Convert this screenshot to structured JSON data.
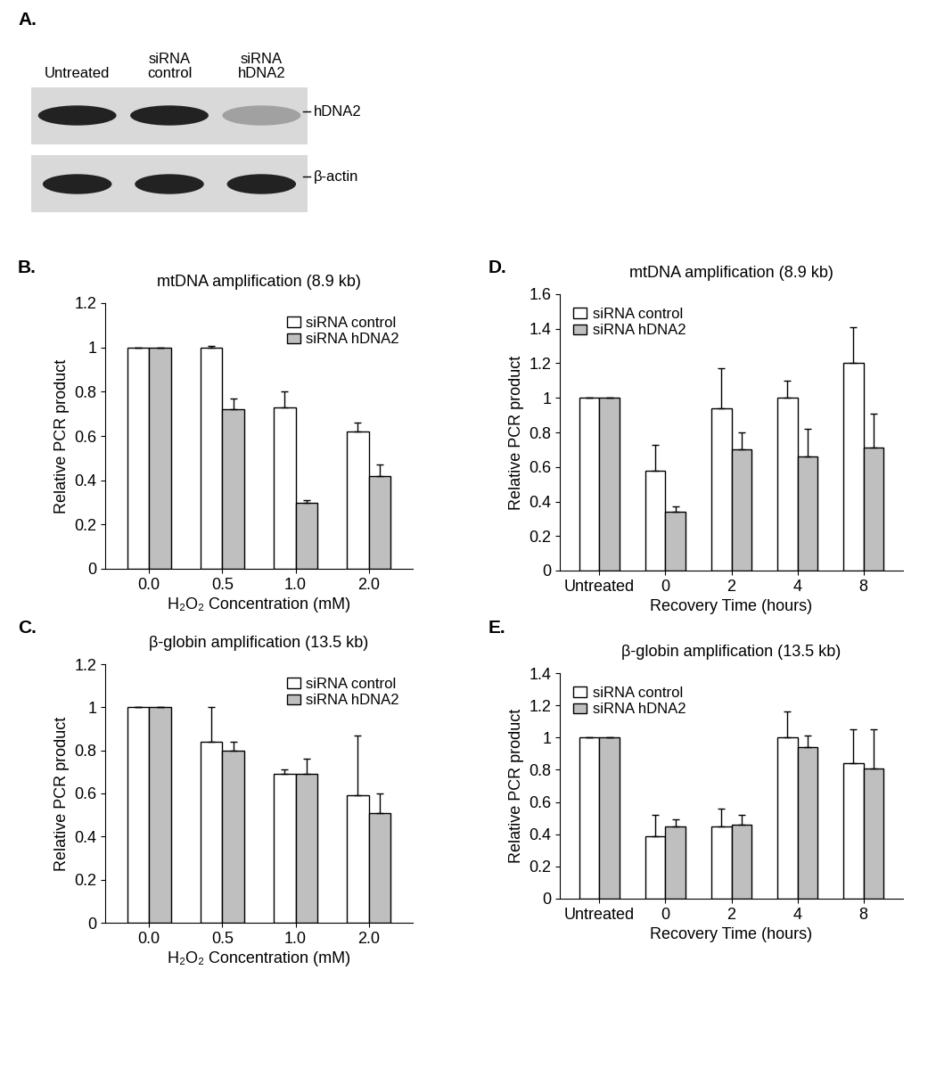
{
  "blot": {
    "panel": "A.",
    "lanes": [
      "Untreated",
      "siRNA\ncontrol",
      "siRNA\nhDNA2"
    ],
    "bands": [
      "hDNA2",
      "β-actin"
    ]
  },
  "chart_data": [
    {
      "panel": "B.",
      "type": "bar",
      "title": "mtDNA amplification (8.9 kb)",
      "x_label": "H₂O₂ Concentration (mM)",
      "y_label": "Relative PCR product",
      "categories": [
        "0.0",
        "0.5",
        "1.0",
        "2.0"
      ],
      "series": [
        {
          "name": "siRNA control",
          "color": "#ffffff",
          "values": [
            1,
            1.0,
            0.73,
            0.62
          ],
          "errors": [
            0,
            0.005,
            0.07,
            0.04
          ]
        },
        {
          "name": "siRNA hDNA2",
          "color": "#bfbfbf",
          "values": [
            1,
            0.72,
            0.3,
            0.42
          ],
          "errors": [
            0,
            0.05,
            0.01,
            0.05
          ]
        }
      ],
      "ylim": [
        0,
        1.2
      ],
      "yticks": [
        0,
        0.2,
        0.4,
        0.6,
        0.8,
        1,
        1.2
      ],
      "legend": "upper right",
      "grid": false
    },
    {
      "panel": "C.",
      "type": "bar",
      "title": "β-globin amplification (13.5 kb)",
      "x_label": "H₂O₂ Concentration (mM)",
      "y_label": "Relative PCR product",
      "categories": [
        "0.0",
        "0.5",
        "1.0",
        "2.0"
      ],
      "series": [
        {
          "name": "siRNA control",
          "color": "#ffffff",
          "values": [
            1,
            0.84,
            0.69,
            0.59
          ],
          "errors": [
            0,
            0.16,
            0.02,
            0.28
          ]
        },
        {
          "name": "siRNA hDNA2",
          "color": "#bfbfbf",
          "values": [
            1,
            0.8,
            0.69,
            0.51
          ],
          "errors": [
            0,
            0.04,
            0.07,
            0.09
          ]
        }
      ],
      "ylim": [
        0,
        1.2
      ],
      "yticks": [
        0,
        0.2,
        0.4,
        0.6,
        0.8,
        1,
        1.2
      ],
      "legend": "upper right",
      "grid": false
    },
    {
      "panel": "D.",
      "type": "bar",
      "title": "mtDNA amplification (8.9 kb)",
      "x_label": "Recovery Time (hours)",
      "y_label": "Relative PCR product",
      "categories": [
        "Untreated",
        "0",
        "2",
        "4",
        "8"
      ],
      "series": [
        {
          "name": "siRNA control",
          "color": "#ffffff",
          "values": [
            1,
            0.58,
            0.94,
            1.0,
            1.2
          ],
          "errors": [
            0,
            0.15,
            0.23,
            0.1,
            0.21
          ]
        },
        {
          "name": "siRNA hDNA2",
          "color": "#bfbfbf",
          "values": [
            1,
            0.34,
            0.7,
            0.66,
            0.71
          ],
          "errors": [
            0,
            0.03,
            0.1,
            0.16,
            0.2
          ]
        }
      ],
      "ylim": [
        0,
        1.6
      ],
      "yticks": [
        0,
        0.2,
        0.4,
        0.6,
        0.8,
        1,
        1.2,
        1.4,
        1.6
      ],
      "legend": "upper left",
      "grid": false
    },
    {
      "panel": "E.",
      "type": "bar",
      "title": "β-globin amplification (13.5 kb)",
      "x_label": "Recovery Time (hours)",
      "y_label": "Relative PCR product",
      "categories": [
        "Untreated",
        "0",
        "2",
        "4",
        "8"
      ],
      "series": [
        {
          "name": "siRNA control",
          "color": "#ffffff",
          "values": [
            1,
            0.39,
            0.45,
            1.0,
            0.84
          ],
          "errors": [
            0,
            0.13,
            0.11,
            0.16,
            0.21
          ]
        },
        {
          "name": "siRNA hDNA2",
          "color": "#bfbfbf",
          "values": [
            1,
            0.45,
            0.46,
            0.94,
            0.81
          ],
          "errors": [
            0,
            0.04,
            0.06,
            0.07,
            0.24
          ]
        }
      ],
      "ylim": [
        0,
        1.4
      ],
      "yticks": [
        0,
        0.2,
        0.4,
        0.6,
        0.8,
        1,
        1.2,
        1.4
      ],
      "legend": "upper left",
      "grid": false
    }
  ]
}
